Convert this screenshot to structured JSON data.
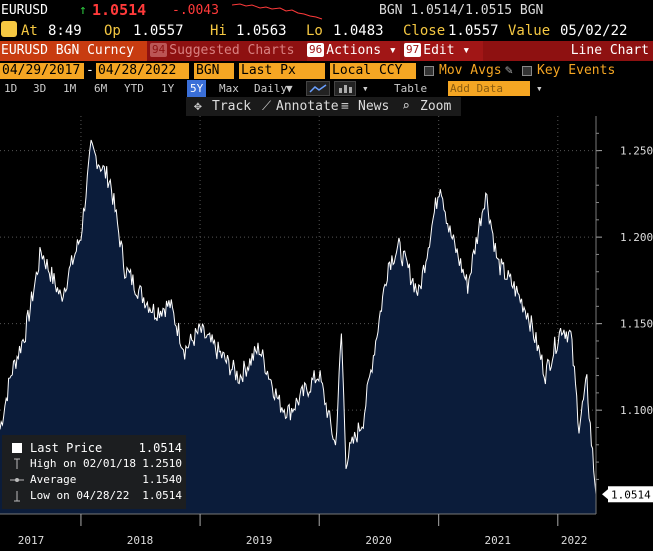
{
  "header": {
    "ticker": "EURUSD",
    "up_arrow": "↑",
    "last_price": "1.0514",
    "change": "-.0043",
    "source_quote": "BGN 1.0514/1.0515 BGN"
  },
  "quote_line": {
    "at_label": "At",
    "time": "8:49",
    "open_label": "Op",
    "open": "1.0557",
    "high_label": "Hi",
    "high": "1.0563",
    "low_label": "Lo",
    "low": "1.0483",
    "close_label": "Close",
    "close": "1.0557",
    "value_label": "Value",
    "value_date": "05/02/22"
  },
  "menu": {
    "security": "EURUSD BGN Curncy",
    "suggested_num": "94",
    "suggested": "Suggested Charts",
    "actions_num": "96",
    "actions": "Actions",
    "edit_num": "97",
    "edit": "Edit",
    "chart_type": "Line Chart"
  },
  "params": {
    "start_date": "04/29/2017",
    "dash": "-",
    "end_date": "04/28/2022",
    "source": "BGN",
    "field": "Last Px",
    "currency": "Local CCY",
    "mov_avgs": "Mov Avgs",
    "key_events": "Key Events"
  },
  "periods": [
    "1D",
    "3D",
    "1M",
    "6M",
    "YTD",
    "1Y",
    "5Y",
    "Max"
  ],
  "selected_period": "5Y",
  "frequency": "Daily",
  "table_label": "Table",
  "add_data_placeholder": "Add Data",
  "tools": {
    "track": "Track",
    "annotate": "Annotate",
    "news": "News",
    "zoom": "Zoom"
  },
  "legend": {
    "last_label": "Last Price",
    "last_value": "1.0514",
    "high_label": "High on 02/01/18",
    "high_value": "1.2510",
    "avg_label": "Average",
    "avg_value": "1.1540",
    "low_label": "Low on 04/28/22",
    "low_value": "1.0514"
  },
  "colors": {
    "area_fill": "#0b1c3a",
    "line": "#ffffff",
    "accent_orange": "#f5a623",
    "menu_red": "#8e1111",
    "down_red": "#ff3a3a"
  },
  "chart_data": {
    "type": "area",
    "series": [
      {
        "name": "Last Price",
        "x": [
          "2017-04-28",
          "2017-06-01",
          "2017-07-15",
          "2017-09-01",
          "2017-11-01",
          "2018-01-01",
          "2018-02-01",
          "2018-04-01",
          "2018-05-15",
          "2018-07-01",
          "2018-08-15",
          "2018-10-01",
          "2018-11-15",
          "2019-01-01",
          "2019-03-01",
          "2019-05-01",
          "2019-07-01",
          "2019-09-01",
          "2019-10-01",
          "2019-12-31",
          "2020-02-20",
          "2020-03-09",
          "2020-03-23",
          "2020-05-15",
          "2020-06-15",
          "2020-07-31",
          "2020-09-01",
          "2020-11-01",
          "2021-01-06",
          "2021-02-01",
          "2021-03-31",
          "2021-05-25",
          "2021-07-01",
          "2021-08-20",
          "2021-10-01",
          "2021-11-24",
          "2022-01-13",
          "2022-02-10",
          "2022-03-07",
          "2022-03-31",
          "2022-04-14",
          "2022-04-28"
        ],
        "y": [
          1.089,
          1.121,
          1.145,
          1.192,
          1.165,
          1.201,
          1.251,
          1.232,
          1.182,
          1.168,
          1.157,
          1.161,
          1.135,
          1.146,
          1.133,
          1.119,
          1.136,
          1.104,
          1.099,
          1.121,
          1.079,
          1.144,
          1.071,
          1.095,
          1.132,
          1.185,
          1.194,
          1.167,
          1.232,
          1.205,
          1.172,
          1.226,
          1.185,
          1.171,
          1.156,
          1.121,
          1.148,
          1.143,
          1.091,
          1.116,
          1.082,
          1.0514
        ]
      }
    ],
    "y_ticks": [
      "1.100",
      "1.150",
      "1.200",
      "1.250"
    ],
    "x_ticks": [
      "2017",
      "2018",
      "2019",
      "2020",
      "2021",
      "2022"
    ],
    "ylim": [
      1.04,
      1.27
    ],
    "last_marker": "1.0514",
    "grid": true,
    "legend": "bottom-left"
  }
}
